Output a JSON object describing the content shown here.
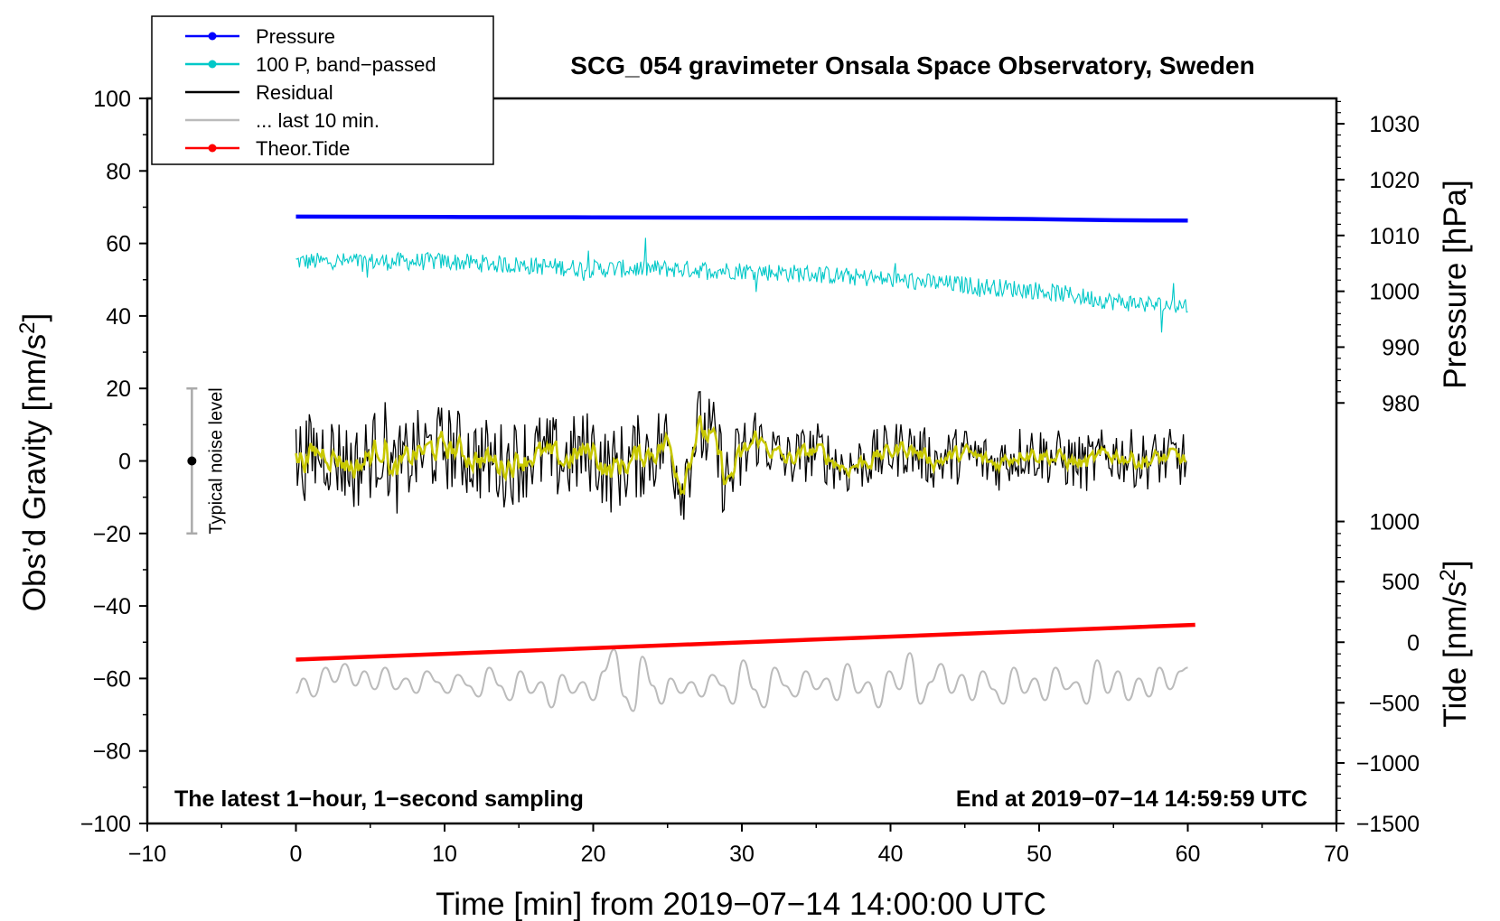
{
  "chart_data": {
    "type": "line",
    "title": "SCG_054 gravimeter Onsala Space Observatory, Sweden",
    "xlabel": "Time [min] from 2019−07−14 14:00:00 UTC",
    "ylabel_left": "Obs’d Gravity [nm/s2]",
    "ylabel_right_top": "Pressure [hPa]",
    "ylabel_right_bottom": "Tide [nm/s2]",
    "xlim": [
      -10,
      70
    ],
    "ylim_left": [
      -100,
      100
    ],
    "x_ticks": [
      -10,
      0,
      10,
      20,
      30,
      40,
      50,
      60,
      70
    ],
    "x_tick_labels": [
      "−10",
      "0",
      "10",
      "20",
      "30",
      "40",
      "50",
      "60",
      "70"
    ],
    "y_left_ticks": [
      100,
      80,
      60,
      40,
      20,
      0,
      -20,
      -40,
      -60,
      -80,
      -100
    ],
    "y_left_tick_labels": [
      "100",
      "80",
      "60",
      "40",
      "20",
      "0",
      "−20",
      "−40",
      "−60",
      "−80",
      "−100"
    ],
    "pressure_axis": {
      "ticks": [
        1030,
        1020,
        1010,
        1000,
        990,
        980
      ],
      "tick_labels": [
        "1030",
        "1020",
        "1010",
        "1000",
        "990",
        "980"
      ],
      "left_axis_equivalent": [
        93,
        77.6,
        62.2,
        46.8,
        31.4,
        16
      ]
    },
    "tide_axis": {
      "ticks": [
        1000,
        500,
        0,
        -500,
        -1000,
        -1500
      ],
      "tick_labels": [
        "1000",
        "500",
        "0",
        "−500",
        "−1000",
        "−1500"
      ],
      "left_axis_equivalent": [
        -16.7,
        -33.3,
        -50,
        -66.7,
        -83.3,
        -100
      ]
    },
    "noise_bar": {
      "center": 0,
      "low": -20,
      "high": 20,
      "x": -7,
      "label": "Typical noise level"
    },
    "notes": {
      "bottom_left": "The latest 1−hour, 1−second sampling",
      "bottom_right": "End at 2019−07−14 14:59:59 UTC"
    },
    "legend": {
      "position": "top-left",
      "entries": [
        {
          "label": "Pressure",
          "color": "#0000ff",
          "marker": true
        },
        {
          "label": "100 P, band−passed",
          "color": "#00c8c8",
          "marker": true
        },
        {
          "label": "Residual",
          "color": "#000000",
          "marker": false
        },
        {
          "label": "... last 10 min.",
          "color": "#bbbbbb",
          "marker": false
        },
        {
          "label": "Theor.Tide",
          "color": "#ff0000",
          "marker": true
        }
      ]
    },
    "series": [
      {
        "name": "Pressure",
        "color": "#0000ff",
        "axis": "left",
        "x": [
          0,
          10,
          20,
          30,
          40,
          45,
          50,
          55,
          60
        ],
        "values": [
          67.4,
          67.3,
          67.2,
          67.1,
          67.0,
          66.9,
          66.7,
          66.4,
          66.3
        ]
      },
      {
        "name": "100 P, band−passed",
        "color": "#00c8c8",
        "axis": "left",
        "noise_amp": 2.5,
        "x": [
          0,
          5,
          10,
          15,
          20,
          25,
          30,
          35,
          40,
          45,
          50,
          55,
          58,
          60
        ],
        "values": [
          55,
          55,
          55,
          54,
          53,
          53,
          52.5,
          51.5,
          50,
          48.5,
          47,
          44,
          43,
          43
        ]
      },
      {
        "name": "Residual",
        "color": "#000000",
        "axis": "left",
        "x": [
          0,
          2,
          4,
          6,
          6.5,
          8,
          10,
          12,
          14,
          16,
          18,
          20,
          21,
          23,
          25,
          26,
          27,
          28,
          29,
          30,
          31,
          33,
          35,
          37,
          39,
          41,
          43,
          45,
          47,
          49,
          51,
          53,
          55,
          57,
          59,
          60
        ],
        "values": [
          0,
          3,
          -2,
          5,
          -4,
          2,
          4,
          1,
          -1,
          2,
          0,
          3,
          -3,
          1,
          5,
          -6,
          9,
          6,
          -6,
          1,
          6,
          0,
          3,
          -2,
          1,
          4,
          0,
          2,
          -1,
          3,
          1,
          -1,
          2,
          0,
          1,
          0
        ]
      },
      {
        "name": "Residual (smoothed)",
        "color": "#c8c800",
        "axis": "left",
        "x": [
          0,
          2,
          4,
          6,
          6.5,
          8,
          10,
          12,
          14,
          16,
          18,
          20,
          21,
          23,
          25,
          26,
          27,
          28,
          29,
          30,
          31,
          33,
          35,
          37,
          39,
          41,
          43,
          45,
          47,
          49,
          51,
          53,
          55,
          57,
          59,
          60
        ],
        "values": [
          0,
          3,
          -2,
          5,
          -4,
          2,
          4,
          1,
          -1,
          2,
          0,
          3,
          -3,
          1,
          5,
          -6,
          9,
          6,
          -6,
          1,
          6,
          0,
          3,
          -2,
          1,
          4,
          0,
          2,
          -1,
          3,
          1,
          -1,
          2,
          0,
          1,
          0
        ]
      },
      {
        "name": "... last 10 min.",
        "color": "#bbbbbb",
        "axis": "left",
        "x": [
          0,
          0.5,
          1.2,
          2.0,
          2.6,
          3.3,
          4.0,
          4.6,
          5.3,
          6.0,
          6.7,
          7.4,
          8.1,
          8.8,
          9.5,
          10.2,
          10.9,
          11.6,
          12.3,
          13.0,
          13.7,
          14.4,
          15.1,
          15.8,
          16.5,
          17.2,
          17.9,
          18.6,
          19.3,
          20.0,
          20.7,
          21.4,
          22.1,
          22.7,
          23.3,
          24.0,
          24.6,
          25.2,
          25.9,
          26.6,
          27.3,
          28.0,
          28.7,
          29.4,
          30.1,
          30.8,
          31.5,
          32.2,
          32.9,
          33.6,
          34.3,
          35.0,
          35.7,
          36.4,
          37.1,
          37.8,
          38.5,
          39.2,
          39.9,
          40.6,
          41.3,
          42.0,
          42.7,
          43.4,
          44.1,
          44.8,
          45.5,
          46.2,
          46.9,
          47.6,
          48.3,
          49.0,
          49.7,
          50.4,
          51.1,
          51.8,
          52.5,
          53.2,
          53.9,
          54.6,
          55.3,
          56.0,
          56.7,
          57.4,
          58.1,
          58.8,
          59.5,
          60.0
        ],
        "values": [
          -64,
          -60,
          -65,
          -57,
          -61,
          -56,
          -62,
          -58,
          -63,
          -57,
          -63,
          -60,
          -64,
          -58,
          -61,
          -64,
          -59,
          -62,
          -65,
          -57,
          -62,
          -66,
          -58,
          -64,
          -61,
          -68,
          -59,
          -64,
          -61,
          -66,
          -58,
          -52,
          -65,
          -69,
          -54,
          -62,
          -67,
          -60,
          -64,
          -61,
          -65,
          -59,
          -62,
          -67,
          -55,
          -63,
          -68,
          -57,
          -62,
          -65,
          -58,
          -63,
          -60,
          -66,
          -56,
          -64,
          -61,
          -68,
          -58,
          -63,
          -53,
          -67,
          -61,
          -56,
          -64,
          -59,
          -66,
          -58,
          -63,
          -67,
          -57,
          -64,
          -60,
          -66,
          -57,
          -63,
          -61,
          -67,
          -55,
          -64,
          -58,
          -66,
          -60,
          -65,
          -57,
          -63,
          -58,
          -57
        ]
      },
      {
        "name": "Theor.Tide",
        "color": "#ff0000",
        "axis": "left",
        "x": [
          0,
          60.5
        ],
        "values": [
          -54.8,
          -45.2
        ]
      }
    ]
  }
}
